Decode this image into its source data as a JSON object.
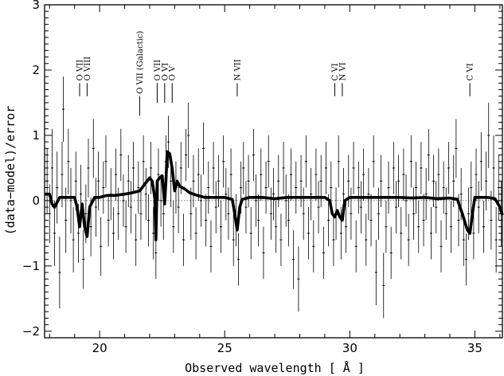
{
  "chart_data": {
    "type": "scatter",
    "xlabel": "Observed wavelength [ Å ]",
    "ylabel": "(data−model)/error",
    "xlim": [
      17.8,
      36.1
    ],
    "ylim": [
      -2.1,
      3.0
    ],
    "xticks": [
      {
        "value": 20,
        "label": "20"
      },
      {
        "value": 25,
        "label": "25"
      },
      {
        "value": 30,
        "label": "30"
      },
      {
        "value": 35,
        "label": "35"
      }
    ],
    "yticks": [
      {
        "value": -2,
        "label": "−2"
      },
      {
        "value": -1,
        "label": "−1"
      },
      {
        "value": 0,
        "label": "0"
      },
      {
        "value": 1,
        "label": "1"
      },
      {
        "value": 2,
        "label": "2"
      },
      {
        "value": 3,
        "label": "3"
      }
    ],
    "grid": false,
    "line_markers": [
      {
        "label": "O VII",
        "x": 19.2,
        "y_top": 1.8,
        "y_bottom": 1.6
      },
      {
        "label": "O VIII",
        "x": 19.5,
        "y_top": 1.8,
        "y_bottom": 1.6
      },
      {
        "label": "O VII (Galactic)",
        "x": 21.6,
        "y_top": 1.6,
        "y_bottom": 1.3
      },
      {
        "label": "O VII",
        "x": 22.3,
        "y_top": 1.8,
        "y_bottom": 1.5
      },
      {
        "label": "O VI",
        "x": 22.6,
        "y_top": 1.8,
        "y_bottom": 1.5
      },
      {
        "label": "O V",
        "x": 22.9,
        "y_top": 1.8,
        "y_bottom": 1.5
      },
      {
        "label": "N VII",
        "x": 25.5,
        "y_top": 1.8,
        "y_bottom": 1.6
      },
      {
        "label": "C VI",
        "x": 29.4,
        "y_top": 1.8,
        "y_bottom": 1.6
      },
      {
        "label": "N VI",
        "x": 29.7,
        "y_top": 1.8,
        "y_bottom": 1.6
      },
      {
        "label": "C VI",
        "x": 34.8,
        "y_top": 1.8,
        "y_bottom": 1.6
      }
    ],
    "zero_line": 0,
    "model_line": {
      "x": [
        17.8,
        18.0,
        18.1,
        18.2,
        18.4,
        18.6,
        18.8,
        19.0,
        19.1,
        19.2,
        19.3,
        19.4,
        19.5,
        19.6,
        19.8,
        20.0,
        20.3,
        20.6,
        21.0,
        21.3,
        21.6,
        21.8,
        22.0,
        22.1,
        22.2,
        22.25,
        22.3,
        22.4,
        22.5,
        22.6,
        22.65,
        22.7,
        22.8,
        22.9,
        23.0,
        23.1,
        23.2,
        23.4,
        23.6,
        23.9,
        24.2,
        24.6,
        25.0,
        25.3,
        25.4,
        25.5,
        25.6,
        25.7,
        26.0,
        26.5,
        27.0,
        27.5,
        28.0,
        28.5,
        29.0,
        29.2,
        29.3,
        29.4,
        29.5,
        29.6,
        29.7,
        29.8,
        30.0,
        30.5,
        31.0,
        31.5,
        32.0,
        32.5,
        33.0,
        33.5,
        34.0,
        34.3,
        34.5,
        34.7,
        34.8,
        34.9,
        35.0,
        35.2,
        35.5,
        35.8,
        36.0,
        36.1
      ],
      "y": [
        0.1,
        0.1,
        -0.05,
        -0.1,
        0.05,
        0.05,
        0.05,
        0.05,
        -0.1,
        -0.4,
        -0.05,
        -0.4,
        -0.55,
        -0.1,
        0.05,
        0.05,
        0.08,
        0.08,
        0.1,
        0.12,
        0.15,
        0.25,
        0.35,
        0.3,
        0.05,
        -0.6,
        0.3,
        0.35,
        0.38,
        -0.05,
        0.3,
        0.75,
        0.72,
        0.5,
        0.15,
        0.3,
        0.22,
        0.18,
        0.12,
        0.08,
        0.05,
        0.05,
        0.05,
        0.02,
        -0.2,
        -0.45,
        -0.1,
        0.02,
        0.05,
        0.05,
        0.03,
        0.05,
        0.05,
        0.05,
        0.05,
        0.0,
        -0.2,
        -0.25,
        -0.15,
        -0.25,
        -0.3,
        0.0,
        0.05,
        0.05,
        0.05,
        0.05,
        0.05,
        0.04,
        0.05,
        0.03,
        0.04,
        0.02,
        -0.2,
        -0.45,
        -0.5,
        -0.2,
        0.05,
        0.05,
        0.05,
        0.03,
        -0.1,
        -0.22
      ]
    },
    "points": [
      {
        "x": 17.9,
        "y": 0.3,
        "err": 0.5
      },
      {
        "x": 18.0,
        "y": -0.2,
        "err": 0.45
      },
      {
        "x": 18.1,
        "y": 0.5,
        "err": 0.6
      },
      {
        "x": 18.2,
        "y": -0.5,
        "err": 0.5
      },
      {
        "x": 18.3,
        "y": 0.2,
        "err": 0.55
      },
      {
        "x": 18.4,
        "y": -1.1,
        "err": 0.55
      },
      {
        "x": 18.5,
        "y": 0.4,
        "err": 0.5
      },
      {
        "x": 18.55,
        "y": 1.4,
        "err": 0.5
      },
      {
        "x": 18.65,
        "y": -0.3,
        "err": 0.5
      },
      {
        "x": 18.75,
        "y": 0.6,
        "err": 0.5
      },
      {
        "x": 18.85,
        "y": 0.0,
        "err": 0.5
      },
      {
        "x": 18.95,
        "y": -0.6,
        "err": 0.5
      },
      {
        "x": 19.05,
        "y": 0.3,
        "err": 0.45
      },
      {
        "x": 19.15,
        "y": -0.5,
        "err": 0.45
      },
      {
        "x": 19.25,
        "y": 0.1,
        "err": 0.45
      },
      {
        "x": 19.35,
        "y": -0.9,
        "err": 0.45
      },
      {
        "x": 19.45,
        "y": -0.2,
        "err": 0.45
      },
      {
        "x": 19.55,
        "y": 0.5,
        "err": 0.45
      },
      {
        "x": 19.65,
        "y": -0.4,
        "err": 0.45
      },
      {
        "x": 19.75,
        "y": 0.8,
        "err": 0.45
      },
      {
        "x": 19.85,
        "y": -0.1,
        "err": 0.45
      },
      {
        "x": 19.95,
        "y": 0.3,
        "err": 0.45
      },
      {
        "x": 20.05,
        "y": -0.7,
        "err": 0.45
      },
      {
        "x": 20.15,
        "y": 0.2,
        "err": 0.4
      },
      {
        "x": 20.25,
        "y": 0.6,
        "err": 0.4
      },
      {
        "x": 20.35,
        "y": -0.3,
        "err": 0.4
      },
      {
        "x": 20.45,
        "y": 0.1,
        "err": 0.4
      },
      {
        "x": 20.55,
        "y": -0.5,
        "err": 0.4
      },
      {
        "x": 20.65,
        "y": 0.4,
        "err": 0.4
      },
      {
        "x": 20.75,
        "y": -0.2,
        "err": 0.4
      },
      {
        "x": 20.85,
        "y": 0.7,
        "err": 0.4
      },
      {
        "x": 20.95,
        "y": 0.0,
        "err": 0.4
      },
      {
        "x": 21.05,
        "y": -0.4,
        "err": 0.4
      },
      {
        "x": 21.15,
        "y": 0.3,
        "err": 0.4
      },
      {
        "x": 21.25,
        "y": -0.1,
        "err": 0.4
      },
      {
        "x": 21.35,
        "y": 0.5,
        "err": 0.4
      },
      {
        "x": 21.45,
        "y": -0.6,
        "err": 0.4
      },
      {
        "x": 21.55,
        "y": 0.2,
        "err": 0.4
      },
      {
        "x": 21.65,
        "y": -0.2,
        "err": 0.4
      },
      {
        "x": 21.75,
        "y": 0.6,
        "err": 0.4
      },
      {
        "x": 21.85,
        "y": 0.1,
        "err": 0.4
      },
      {
        "x": 21.95,
        "y": -0.3,
        "err": 0.4
      },
      {
        "x": 22.05,
        "y": 0.5,
        "err": 0.4
      },
      {
        "x": 22.15,
        "y": -0.5,
        "err": 0.4
      },
      {
        "x": 22.25,
        "y": -0.8,
        "err": 0.4
      },
      {
        "x": 22.35,
        "y": 0.4,
        "err": 0.4
      },
      {
        "x": 22.45,
        "y": 0.0,
        "err": 0.4
      },
      {
        "x": 22.55,
        "y": -0.2,
        "err": 0.4
      },
      {
        "x": 22.65,
        "y": 0.6,
        "err": 0.4
      },
      {
        "x": 22.75,
        "y": 0.9,
        "err": 0.4
      },
      {
        "x": 22.85,
        "y": 0.3,
        "err": 0.4
      },
      {
        "x": 22.95,
        "y": -0.4,
        "err": 0.4
      },
      {
        "x": 23.05,
        "y": 0.2,
        "err": 0.4
      },
      {
        "x": 23.15,
        "y": -0.1,
        "err": 0.4
      },
      {
        "x": 23.25,
        "y": 0.5,
        "err": 0.4
      },
      {
        "x": 23.35,
        "y": -0.6,
        "err": 0.4
      },
      {
        "x": 23.45,
        "y": 0.7,
        "err": 0.4
      },
      {
        "x": 23.55,
        "y": 1.0,
        "err": 0.5
      },
      {
        "x": 23.65,
        "y": -0.2,
        "err": 0.4
      },
      {
        "x": 23.75,
        "y": 0.3,
        "err": 0.4
      },
      {
        "x": 23.85,
        "y": -0.5,
        "err": 0.4
      },
      {
        "x": 23.95,
        "y": 0.4,
        "err": 0.4
      },
      {
        "x": 24.05,
        "y": 0.0,
        "err": 0.4
      },
      {
        "x": 24.15,
        "y": 0.8,
        "err": 0.4
      },
      {
        "x": 24.25,
        "y": -0.3,
        "err": 0.4
      },
      {
        "x": 24.35,
        "y": 0.2,
        "err": 0.4
      },
      {
        "x": 24.45,
        "y": -0.7,
        "err": 0.4
      },
      {
        "x": 24.55,
        "y": 0.5,
        "err": 0.4
      },
      {
        "x": 24.65,
        "y": -0.1,
        "err": 0.4
      },
      {
        "x": 24.75,
        "y": 0.3,
        "err": 0.4
      },
      {
        "x": 24.85,
        "y": -0.4,
        "err": 0.4
      },
      {
        "x": 24.95,
        "y": 0.6,
        "err": 0.4
      },
      {
        "x": 25.05,
        "y": 0.1,
        "err": 0.4
      },
      {
        "x": 25.15,
        "y": -0.2,
        "err": 0.4
      },
      {
        "x": 25.25,
        "y": 0.4,
        "err": 0.4
      },
      {
        "x": 25.35,
        "y": -0.6,
        "err": 0.4
      },
      {
        "x": 25.45,
        "y": -0.3,
        "err": 0.4
      },
      {
        "x": 25.55,
        "y": -0.9,
        "err": 0.4
      },
      {
        "x": 25.65,
        "y": 0.2,
        "err": 0.4
      },
      {
        "x": 25.75,
        "y": 0.5,
        "err": 0.4
      },
      {
        "x": 25.85,
        "y": -0.1,
        "err": 0.4
      },
      {
        "x": 25.95,
        "y": 0.3,
        "err": 0.4
      },
      {
        "x": 26.05,
        "y": -0.5,
        "err": 0.4
      },
      {
        "x": 26.15,
        "y": 0.7,
        "err": 0.4
      },
      {
        "x": 26.25,
        "y": 0.0,
        "err": 0.4
      },
      {
        "x": 26.35,
        "y": -0.3,
        "err": 0.4
      },
      {
        "x": 26.45,
        "y": 0.4,
        "err": 0.4
      },
      {
        "x": 26.55,
        "y": -0.8,
        "err": 0.4
      },
      {
        "x": 26.65,
        "y": 0.2,
        "err": 0.4
      },
      {
        "x": 26.75,
        "y": 0.6,
        "err": 0.4
      },
      {
        "x": 26.85,
        "y": -0.2,
        "err": 0.4
      },
      {
        "x": 26.95,
        "y": 0.1,
        "err": 0.4
      },
      {
        "x": 27.05,
        "y": -0.4,
        "err": 0.4
      },
      {
        "x": 27.15,
        "y": 0.3,
        "err": 0.4
      },
      {
        "x": 27.25,
        "y": -0.6,
        "err": 0.4
      },
      {
        "x": 27.35,
        "y": 0.5,
        "err": 0.4
      },
      {
        "x": 27.45,
        "y": 0.0,
        "err": 0.4
      },
      {
        "x": 27.55,
        "y": -0.3,
        "err": 0.4
      },
      {
        "x": 27.65,
        "y": 0.4,
        "err": 0.4
      },
      {
        "x": 27.75,
        "y": -0.9,
        "err": 0.45
      },
      {
        "x": 27.85,
        "y": 0.2,
        "err": 0.4
      },
      {
        "x": 27.95,
        "y": -1.2,
        "err": 0.5
      },
      {
        "x": 28.05,
        "y": 0.3,
        "err": 0.4
      },
      {
        "x": 28.15,
        "y": -0.2,
        "err": 0.4
      },
      {
        "x": 28.25,
        "y": 0.6,
        "err": 0.4
      },
      {
        "x": 28.35,
        "y": -0.5,
        "err": 0.4
      },
      {
        "x": 28.45,
        "y": 0.1,
        "err": 0.4
      },
      {
        "x": 28.55,
        "y": -0.7,
        "err": 0.4
      },
      {
        "x": 28.65,
        "y": 0.4,
        "err": 0.4
      },
      {
        "x": 28.75,
        "y": -0.1,
        "err": 0.4
      },
      {
        "x": 28.85,
        "y": 0.3,
        "err": 0.4
      },
      {
        "x": 28.95,
        "y": -0.8,
        "err": 0.4
      },
      {
        "x": 29.05,
        "y": 0.5,
        "err": 0.4
      },
      {
        "x": 29.15,
        "y": -0.3,
        "err": 0.4
      },
      {
        "x": 29.25,
        "y": 0.2,
        "err": 0.4
      },
      {
        "x": 29.35,
        "y": -0.6,
        "err": 0.4
      },
      {
        "x": 29.45,
        "y": -0.2,
        "err": 0.4
      },
      {
        "x": 29.55,
        "y": 0.6,
        "err": 0.4
      },
      {
        "x": 29.65,
        "y": -0.5,
        "err": 0.4
      },
      {
        "x": 29.75,
        "y": 0.1,
        "err": 0.4
      },
      {
        "x": 29.85,
        "y": -0.4,
        "err": 0.4
      },
      {
        "x": 29.95,
        "y": 0.3,
        "err": 0.4
      },
      {
        "x": 30.05,
        "y": -0.2,
        "err": 0.4
      },
      {
        "x": 30.15,
        "y": 0.5,
        "err": 0.4
      },
      {
        "x": 30.25,
        "y": -0.7,
        "err": 0.4
      },
      {
        "x": 30.35,
        "y": 0.2,
        "err": 0.4
      },
      {
        "x": 30.45,
        "y": -0.1,
        "err": 0.4
      },
      {
        "x": 30.55,
        "y": 0.4,
        "err": 0.4
      },
      {
        "x": 30.65,
        "y": -0.6,
        "err": 0.4
      },
      {
        "x": 30.75,
        "y": 0.1,
        "err": 0.4
      },
      {
        "x": 30.85,
        "y": -0.3,
        "err": 0.4
      },
      {
        "x": 30.95,
        "y": 0.6,
        "err": 0.4
      },
      {
        "x": 31.05,
        "y": -1.1,
        "err": 0.5
      },
      {
        "x": 31.15,
        "y": -0.2,
        "err": 0.4
      },
      {
        "x": 31.25,
        "y": 0.3,
        "err": 0.4
      },
      {
        "x": 31.35,
        "y": -1.3,
        "err": 0.5
      },
      {
        "x": 31.45,
        "y": -0.4,
        "err": 0.4
      },
      {
        "x": 31.55,
        "y": 0.2,
        "err": 0.4
      },
      {
        "x": 31.65,
        "y": -0.8,
        "err": 0.4
      },
      {
        "x": 31.75,
        "y": 0.5,
        "err": 0.4
      },
      {
        "x": 31.85,
        "y": -0.1,
        "err": 0.4
      },
      {
        "x": 31.95,
        "y": 0.3,
        "err": 0.4
      },
      {
        "x": 32.05,
        "y": -0.5,
        "err": 0.4
      },
      {
        "x": 32.15,
        "y": 0.4,
        "err": 0.4
      },
      {
        "x": 32.25,
        "y": 0.0,
        "err": 0.4
      },
      {
        "x": 32.35,
        "y": -0.6,
        "err": 0.4
      },
      {
        "x": 32.45,
        "y": 0.6,
        "err": 0.4
      },
      {
        "x": 32.55,
        "y": -0.2,
        "err": 0.4
      },
      {
        "x": 32.65,
        "y": 0.2,
        "err": 0.4
      },
      {
        "x": 32.75,
        "y": -0.4,
        "err": 0.4
      },
      {
        "x": 32.85,
        "y": 0.5,
        "err": 0.4
      },
      {
        "x": 32.95,
        "y": -0.3,
        "err": 0.4
      },
      {
        "x": 33.05,
        "y": 0.1,
        "err": 0.4
      },
      {
        "x": 33.15,
        "y": 0.7,
        "err": 0.4
      },
      {
        "x": 33.25,
        "y": -0.5,
        "err": 0.4
      },
      {
        "x": 33.35,
        "y": 0.3,
        "err": 0.4
      },
      {
        "x": 33.45,
        "y": -0.1,
        "err": 0.4
      },
      {
        "x": 33.55,
        "y": 0.4,
        "err": 0.4
      },
      {
        "x": 33.65,
        "y": -0.7,
        "err": 0.4
      },
      {
        "x": 33.75,
        "y": 0.2,
        "err": 0.4
      },
      {
        "x": 33.85,
        "y": -0.2,
        "err": 0.4
      },
      {
        "x": 33.95,
        "y": 0.5,
        "err": 0.4
      },
      {
        "x": 34.05,
        "y": -0.4,
        "err": 0.4
      },
      {
        "x": 34.15,
        "y": 0.3,
        "err": 0.4
      },
      {
        "x": 34.25,
        "y": 0.8,
        "err": 0.45
      },
      {
        "x": 34.35,
        "y": -0.3,
        "err": 0.4
      },
      {
        "x": 34.45,
        "y": 0.1,
        "err": 0.4
      },
      {
        "x": 34.55,
        "y": -0.6,
        "err": 0.4
      },
      {
        "x": 34.65,
        "y": -0.9,
        "err": 0.4
      },
      {
        "x": 34.75,
        "y": -0.2,
        "err": 0.4
      },
      {
        "x": 34.85,
        "y": 0.2,
        "err": 0.4
      },
      {
        "x": 34.95,
        "y": -0.5,
        "err": 0.4
      },
      {
        "x": 35.05,
        "y": 0.4,
        "err": 0.4
      },
      {
        "x": 35.15,
        "y": -0.1,
        "err": 0.4
      },
      {
        "x": 35.25,
        "y": 0.6,
        "err": 0.45
      },
      {
        "x": 35.35,
        "y": -0.4,
        "err": 0.4
      },
      {
        "x": 35.45,
        "y": 0.3,
        "err": 0.45
      },
      {
        "x": 35.55,
        "y": 1.0,
        "err": 0.5
      },
      {
        "x": 35.65,
        "y": -0.3,
        "err": 0.45
      },
      {
        "x": 35.75,
        "y": 0.5,
        "err": 0.5
      },
      {
        "x": 35.85,
        "y": -0.6,
        "err": 0.5
      },
      {
        "x": 35.95,
        "y": 0.2,
        "err": 0.5
      },
      {
        "x": 36.05,
        "y": -0.2,
        "err": 0.5
      }
    ]
  }
}
